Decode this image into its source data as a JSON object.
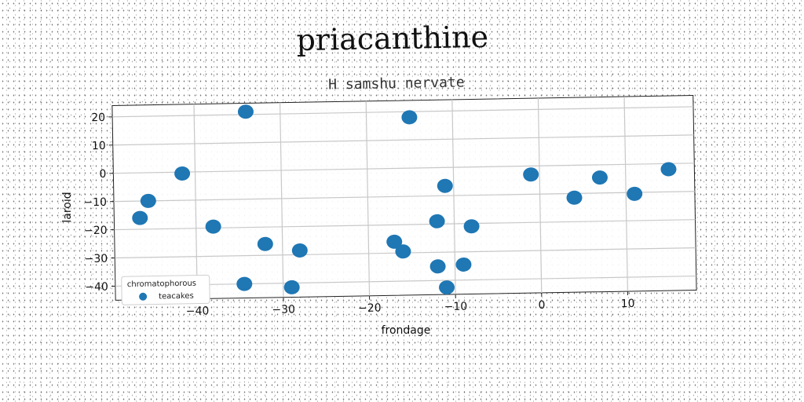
{
  "chart_data": {
    "type": "scatter",
    "title": "priacanthine",
    "subtitle": "H samshu nervate",
    "xlabel": "frondage",
    "ylabel": "laroid",
    "xlim": [
      -49.5,
      18
    ],
    "ylim": [
      -45,
      24
    ],
    "xticks": [
      -40,
      -30,
      -20,
      -10,
      0,
      10
    ],
    "yticks": [
      20,
      10,
      0,
      -10,
      -20,
      -30,
      -40
    ],
    "grid": true,
    "legend": {
      "title": "chromatophorous",
      "position": "lower-left"
    },
    "series": [
      {
        "name": "teacakes",
        "color": "#1f77b4",
        "points": [
          {
            "x": -46.5,
            "y": -16
          },
          {
            "x": -45.5,
            "y": -10
          },
          {
            "x": -41.5,
            "y": -0.5
          },
          {
            "x": -38,
            "y": -19.5
          },
          {
            "x": -34,
            "y": 21
          },
          {
            "x": -34.5,
            "y": -40
          },
          {
            "x": -32,
            "y": -26
          },
          {
            "x": -29,
            "y": -41.5
          },
          {
            "x": -28,
            "y": -28.5
          },
          {
            "x": -17,
            "y": -26
          },
          {
            "x": -16,
            "y": -29.5
          },
          {
            "x": -15,
            "y": 18
          },
          {
            "x": -12,
            "y": -19
          },
          {
            "x": -12,
            "y": -35
          },
          {
            "x": -11,
            "y": -6.5
          },
          {
            "x": -11,
            "y": -42.5
          },
          {
            "x": -9,
            "y": -34.5
          },
          {
            "x": -8,
            "y": -21
          },
          {
            "x": -1,
            "y": -3
          },
          {
            "x": 4,
            "y": -11.5
          },
          {
            "x": 7,
            "y": -4.5
          },
          {
            "x": 11,
            "y": -10.5
          },
          {
            "x": 15,
            "y": -2
          }
        ]
      }
    ]
  }
}
